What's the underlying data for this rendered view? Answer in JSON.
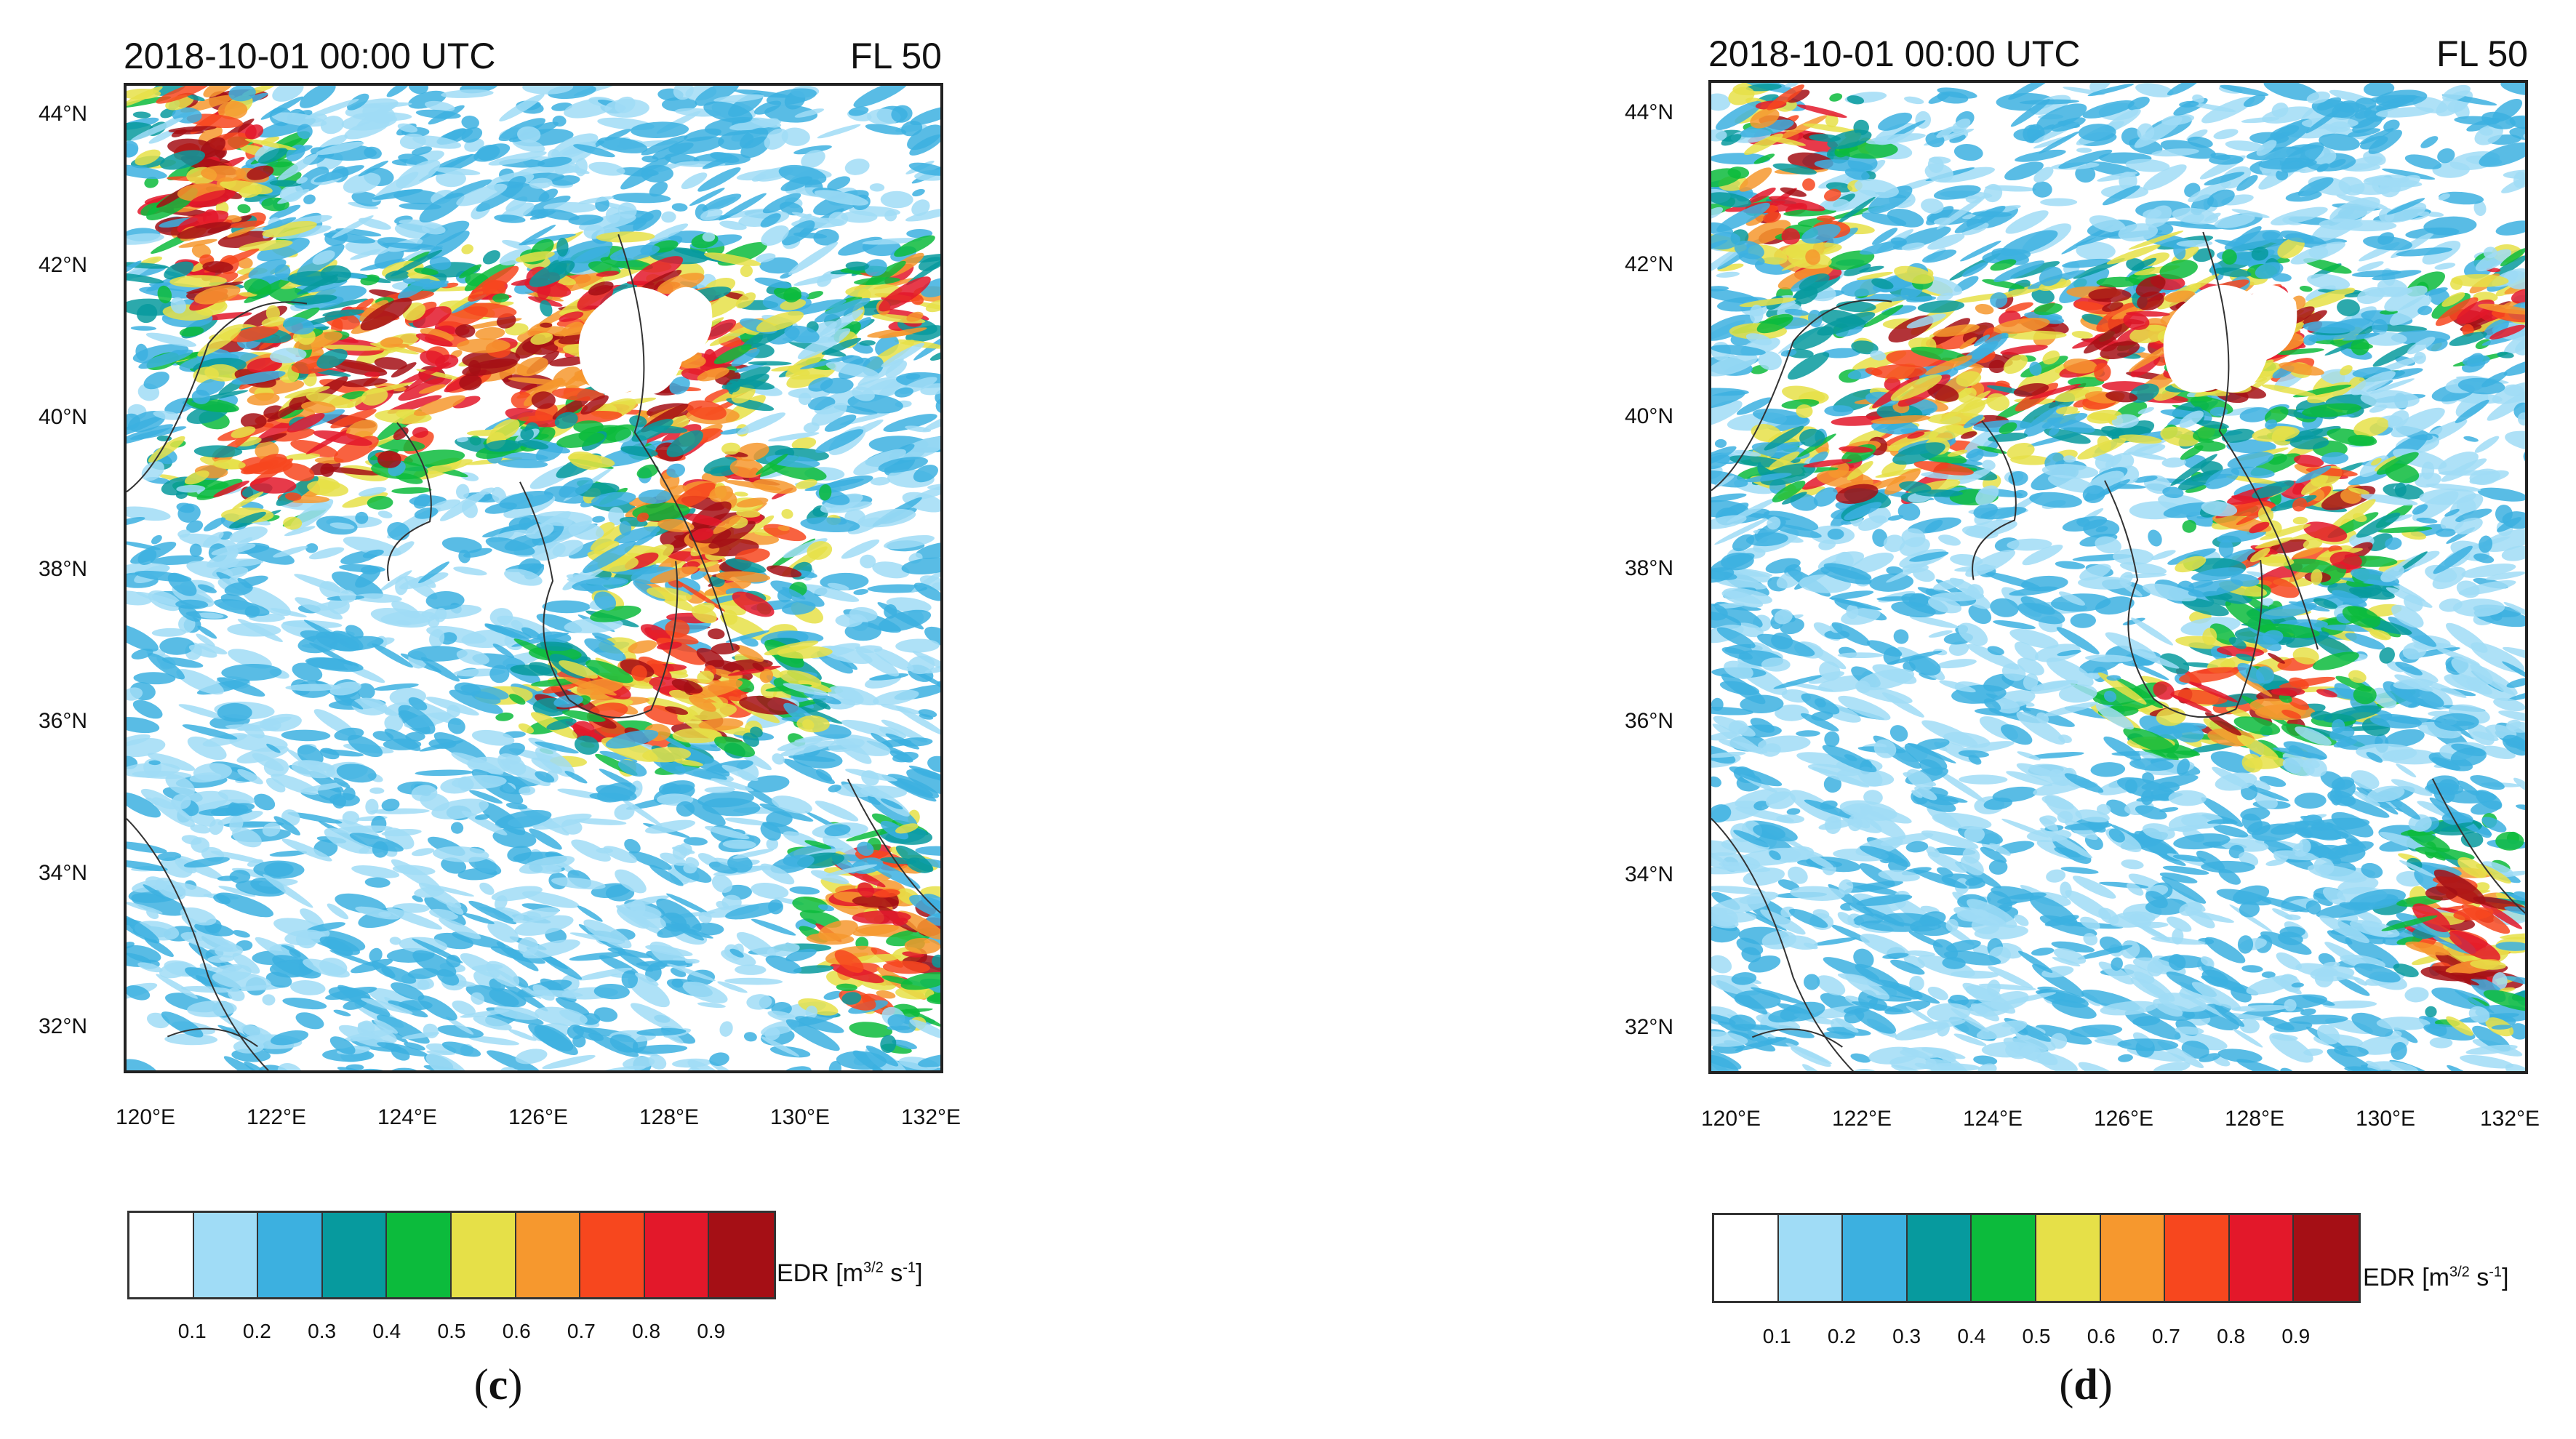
{
  "panels": [
    {
      "id": "c",
      "title": "2018-10-01 00:00 UTC",
      "level": "FL 50",
      "caption_letter": "c",
      "lat_labels": [
        "44°N",
        "42°N",
        "40°N",
        "38°N",
        "36°N",
        "34°N",
        "32°N"
      ],
      "lon_labels": [
        "120°E",
        "122°E",
        "124°E",
        "126°E",
        "128°E",
        "130°E",
        "132°E"
      ]
    },
    {
      "id": "d",
      "title": "2018-10-01 00:00 UTC",
      "level": "FL 50",
      "caption_letter": "d",
      "lat_labels": [
        "44°N",
        "42°N",
        "40°N",
        "38°N",
        "36°N",
        "34°N",
        "32°N"
      ],
      "lon_labels": [
        "120°E",
        "122°E",
        "124°E",
        "126°E",
        "128°E",
        "130°E",
        "132°E"
      ]
    }
  ],
  "colorbar": {
    "title_prefix": "EDR [m",
    "title_sup1": "3/2",
    "title_mid": " s",
    "title_sup2": "-1",
    "title_suffix": "]",
    "levels": [
      "0.1",
      "0.2",
      "0.3",
      "0.4",
      "0.5",
      "0.6",
      "0.7",
      "0.8",
      "0.9"
    ],
    "colors": [
      "#ffffff",
      "#a0dcf6",
      "#3cb0e0",
      "#079a9e",
      "#0cbb3c",
      "#e6e048",
      "#f6982e",
      "#f7471e",
      "#e3182a",
      "#a50f15"
    ]
  }
}
